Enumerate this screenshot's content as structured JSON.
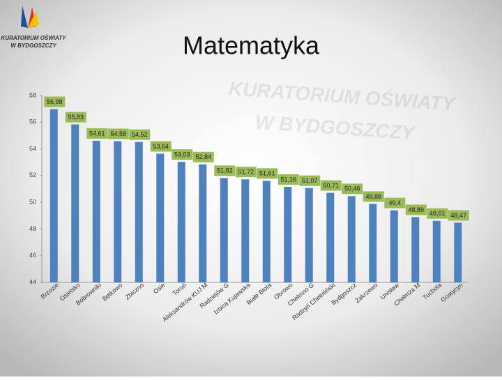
{
  "logo": {
    "line1": "KURATORIUM OŚWIATY",
    "line2": "W BYDGOSZCZY"
  },
  "chart_data": {
    "type": "bar",
    "title": "Matematyka",
    "categories": [
      "Brzozie",
      "Osielsko",
      "Bobrowniki",
      "Bętkowo",
      "Zbiczno",
      "Osie",
      "Toruń",
      "Aleksandrów KUJ M",
      "Radziejów G",
      "Izbica Kujawska",
      "Białe Błota",
      "Obrowo",
      "Chełmno G",
      "Radzyń Chełmiński",
      "Bydgoszcz",
      "Zakrzewo",
      "Unisław",
      "Chełmża M",
      "Tuchola",
      "Gostycyn"
    ],
    "values": [
      56.98,
      55.83,
      54.61,
      54.58,
      54.52,
      53.64,
      53.03,
      52.84,
      51.82,
      51.72,
      51.61,
      51.16,
      51.07,
      50.71,
      50.46,
      49.88,
      49.4,
      48.89,
      48.61,
      48.47
    ],
    "value_labels": [
      "56,98",
      "55,83",
      "54,61",
      "54,58",
      "54,52",
      "53,64",
      "53,03",
      "52,84",
      "51,82",
      "51,72",
      "51,61",
      "51,16",
      "51,07",
      "50,71",
      "50,46",
      "49,88",
      "49,4",
      "48,89",
      "48,61",
      "48,47"
    ],
    "color": "#4f81bd",
    "label_color": "#9bbb59",
    "ylim": [
      44,
      58
    ],
    "yticks": [
      44,
      46,
      48,
      50,
      52,
      54,
      56,
      58
    ],
    "grid": false
  }
}
